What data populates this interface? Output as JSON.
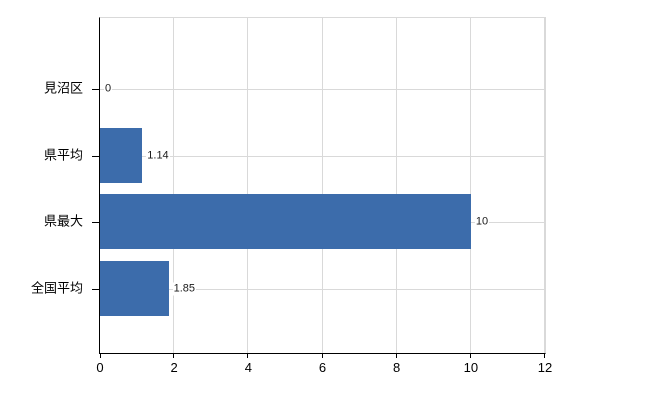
{
  "chart_data": {
    "type": "bar",
    "orientation": "horizontal",
    "title": "",
    "categories": [
      "見沼区",
      "県平均",
      "県最大",
      "全国平均"
    ],
    "values": [
      0,
      1.14,
      10,
      1.85
    ],
    "value_labels": [
      "0",
      "1.14",
      "10",
      "1.85"
    ],
    "xlim": [
      0,
      12
    ],
    "x_ticks": [
      0,
      2,
      4,
      6,
      8,
      10,
      12
    ],
    "x_tick_labels": [
      "0",
      "2",
      "4",
      "6",
      "8",
      "10",
      "12"
    ],
    "grid": true,
    "legend": false,
    "colors": {
      "bar": "#3c6cab",
      "grid": "#d9d9d9",
      "axis": "#000000",
      "text": "#000000",
      "background": "#ffffff"
    }
  }
}
